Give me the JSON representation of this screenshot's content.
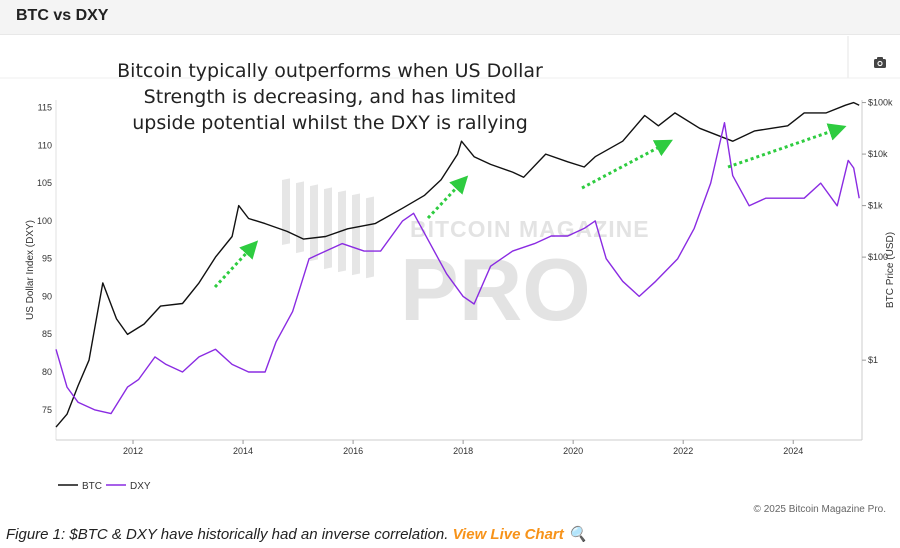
{
  "header": {
    "title": "BTC vs DXY"
  },
  "toolbar": {
    "camera_icon": "camera-icon"
  },
  "annotation": {
    "lines": [
      "Bitcoin typically outperforms when US Dollar",
      "Strength is decreasing, and has limited",
      "upside potential whilst the DXY is rallying"
    ]
  },
  "watermark": {
    "line1": "BITCOIN MAGAZINE",
    "line2": "PRO"
  },
  "copyright": "© 2025 Bitcoin Magazine Pro.",
  "caption": {
    "text": "Figure 1: $BTC & DXY have historically had an inverse correlation.",
    "link": "View Live Chart",
    "link_icon": "🔍"
  },
  "colors": {
    "btc": "#111111",
    "dxy": "#8a2be2",
    "arrow": "#2ecc40",
    "accent": "#f7931a"
  },
  "chart_data": {
    "type": "line",
    "title": "BTC vs DXY",
    "xlabel": "",
    "ylabel_left": "US Dollar Index (DXY)",
    "ylabel_right": "BTC Price (USD)",
    "xlim": [
      2010.6,
      2025.25
    ],
    "ylim_left": [
      71,
      116
    ],
    "ylim_right_log": [
      -1.55,
      5.05
    ],
    "x_ticks": [
      "2012",
      "2014",
      "2016",
      "2018",
      "2020",
      "2022",
      "2024"
    ],
    "x_tick_values": [
      2012,
      2014,
      2016,
      2018,
      2020,
      2022,
      2024
    ],
    "left_ticks": [
      "75",
      "80",
      "85",
      "90",
      "95",
      "100",
      "105",
      "110",
      "115"
    ],
    "left_tick_values": [
      75,
      80,
      85,
      90,
      95,
      100,
      105,
      110,
      115
    ],
    "right_ticks": [
      "$1",
      "$100",
      "$1k",
      "$10k",
      "$100k"
    ],
    "right_tick_log_values": [
      0,
      2,
      3,
      4,
      5
    ],
    "legend": [
      "BTC",
      "DXY"
    ],
    "legend_position": "bottom-left",
    "series": [
      {
        "name": "BTC",
        "axis": "right",
        "scale": "log10",
        "x": [
          2010.6,
          2010.8,
          2011.0,
          2011.2,
          2011.45,
          2011.7,
          2011.9,
          2012.2,
          2012.5,
          2012.9,
          2013.2,
          2013.5,
          2013.8,
          2013.92,
          2014.1,
          2014.4,
          2014.8,
          2015.1,
          2015.5,
          2015.9,
          2016.4,
          2016.9,
          2017.3,
          2017.6,
          2017.9,
          2017.97,
          2018.2,
          2018.5,
          2018.9,
          2019.1,
          2019.5,
          2019.9,
          2020.2,
          2020.4,
          2020.9,
          2021.3,
          2021.55,
          2021.85,
          2022.3,
          2022.9,
          2023.3,
          2023.9,
          2024.2,
          2024.6,
          2024.95,
          2025.1,
          2025.2
        ],
        "y": [
          -1.3,
          -1.05,
          -0.5,
          0.0,
          1.5,
          0.8,
          0.5,
          0.7,
          1.05,
          1.1,
          1.5,
          2.0,
          2.4,
          3.0,
          2.75,
          2.65,
          2.5,
          2.35,
          2.4,
          2.55,
          2.65,
          2.95,
          3.2,
          3.5,
          4.0,
          4.25,
          3.95,
          3.8,
          3.65,
          3.55,
          4.0,
          3.85,
          3.75,
          3.95,
          4.25,
          4.75,
          4.55,
          4.8,
          4.5,
          4.25,
          4.45,
          4.55,
          4.8,
          4.8,
          4.95,
          5.0,
          4.95
        ]
      },
      {
        "name": "DXY",
        "axis": "left",
        "x": [
          2010.6,
          2010.8,
          2011.0,
          2011.3,
          2011.6,
          2011.9,
          2012.1,
          2012.4,
          2012.6,
          2012.9,
          2013.2,
          2013.5,
          2013.8,
          2014.1,
          2014.4,
          2014.6,
          2014.9,
          2015.2,
          2015.5,
          2015.8,
          2016.2,
          2016.5,
          2016.9,
          2017.1,
          2017.4,
          2017.7,
          2018.0,
          2018.2,
          2018.5,
          2018.9,
          2019.3,
          2019.6,
          2019.9,
          2020.2,
          2020.4,
          2020.6,
          2020.9,
          2021.2,
          2021.5,
          2021.9,
          2022.2,
          2022.5,
          2022.75,
          2022.9,
          2023.2,
          2023.5,
          2023.9,
          2024.2,
          2024.5,
          2024.8,
          2025.0,
          2025.1,
          2025.2
        ],
        "y": [
          83,
          78,
          76,
          75,
          74.5,
          78,
          79,
          82,
          81,
          80,
          82,
          83,
          81,
          80,
          80,
          84,
          88,
          95,
          96,
          97,
          96,
          96,
          100,
          101,
          97,
          93,
          90,
          89,
          94,
          96,
          97,
          98,
          98,
          99,
          100,
          95,
          92,
          90,
          92,
          95,
          99,
          105,
          113,
          106,
          102,
          103,
          103,
          103,
          105,
          102,
          108,
          107,
          103
        ]
      }
    ]
  }
}
